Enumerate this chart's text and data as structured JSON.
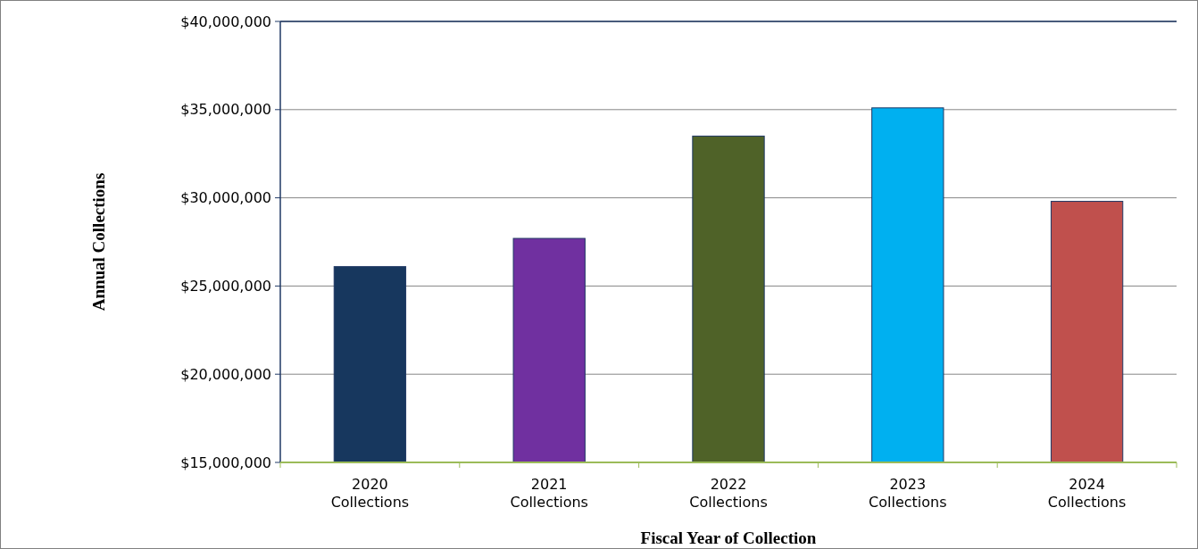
{
  "chart_data": {
    "type": "bar",
    "xlabel": "Fiscal Year of Collection",
    "ylabel": "Annual Collections",
    "categories": [
      "2020 Collections",
      "2021 Collections",
      "2022 Collections",
      "2023 Collections",
      "2024 Collections"
    ],
    "values": [
      26100000,
      27700000,
      33500000,
      35100000,
      29800000
    ],
    "colors": [
      "#17375e",
      "#7030a0",
      "#4f6228",
      "#00b0f0",
      "#c0504d"
    ],
    "ylim": [
      15000000,
      40000000
    ],
    "yticks": [
      {
        "value": 15000000,
        "label": "$15,000,000"
      },
      {
        "value": 20000000,
        "label": "$20,000,000"
      },
      {
        "value": 25000000,
        "label": "$25,000,000"
      },
      {
        "value": 30000000,
        "label": "$30,000,000"
      },
      {
        "value": 35000000,
        "label": "$35,000,000"
      },
      {
        "value": 40000000,
        "label": "$40,000,000"
      }
    ],
    "grid": "y"
  }
}
